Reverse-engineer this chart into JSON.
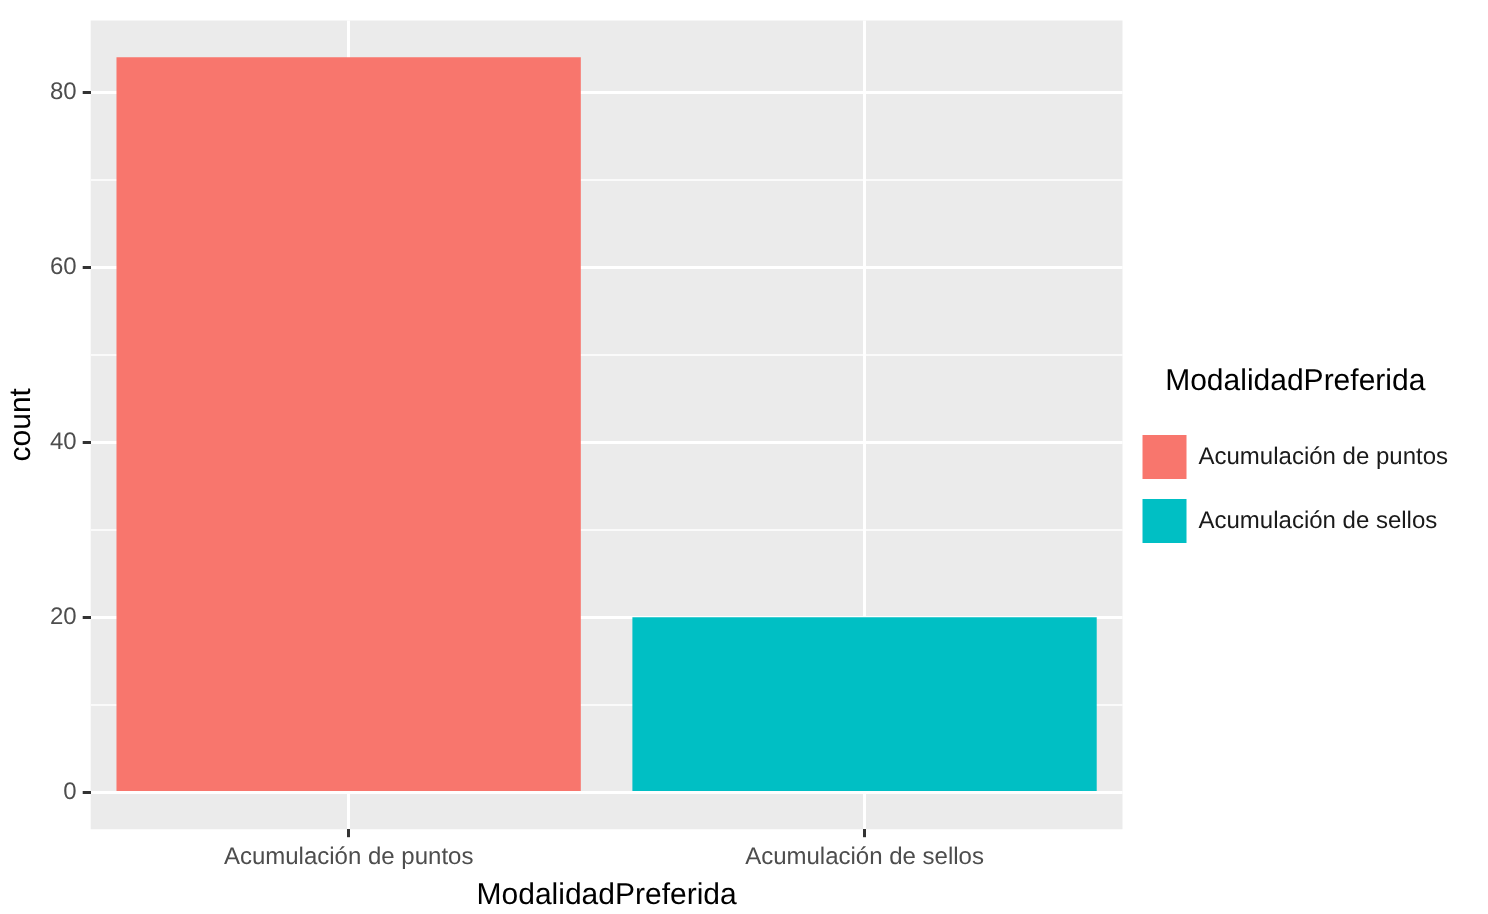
{
  "chart_data": {
    "type": "bar",
    "categories": [
      "Acumulación de puntos",
      "Acumulación de sellos"
    ],
    "series": [
      {
        "name": "Acumulación de puntos",
        "color": "#f8766d",
        "values": [
          84,
          null
        ]
      },
      {
        "name": "Acumulación de sellos",
        "color": "#00bfc4",
        "values": [
          null,
          20
        ]
      }
    ],
    "xlabel": "ModalidadPreferida",
    "ylabel": "count",
    "legend_title": "ModalidadPreferida",
    "legend": "right",
    "ylim": [
      -4.2,
      88.2
    ],
    "yticks": [
      0,
      {
        "value": 10,
        "label": null
      },
      20,
      {
        "value": 30,
        "label": null
      },
      40,
      {
        "value": 50,
        "label": null
      },
      60,
      {
        "value": 70,
        "label": null
      },
      80
    ],
    "grid": true
  }
}
